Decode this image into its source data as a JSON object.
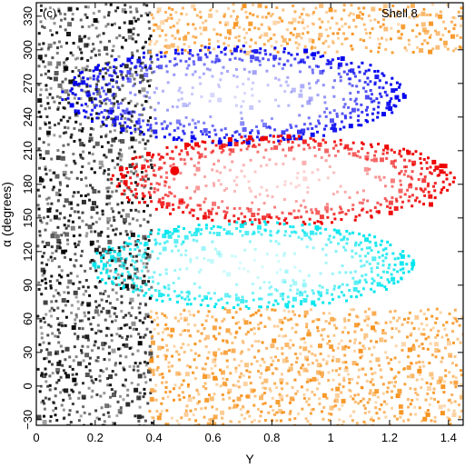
{
  "chart_data": {
    "type": "scatter",
    "panel_label": "(c)",
    "annotation": "Shell 8",
    "xlabel": "Y",
    "ylabel": "α (degrees)",
    "xlim": [
      0,
      1.45
    ],
    "ylim": [
      -35,
      342
    ],
    "xticks": [
      0,
      0.2,
      0.4,
      0.6,
      0.8,
      1,
      1.2,
      1.4
    ],
    "xtick_labels": [
      "0",
      "0.2",
      "0.4",
      "0.6",
      "0.8",
      "1",
      "1.2",
      "1.4"
    ],
    "yticks": [
      -30,
      0,
      30,
      60,
      90,
      120,
      150,
      180,
      210,
      240,
      270,
      300,
      330
    ],
    "ytick_labels": [
      "−30",
      "0",
      "30",
      "60",
      "90",
      "120",
      "150",
      "180",
      "210",
      "240",
      "270",
      "300",
      "330"
    ],
    "grid": false,
    "colors": {
      "black": "#000000",
      "orange": "#f7931e",
      "blue": "#0000ee",
      "red": "#ee0000",
      "cyan": "#00e5ee"
    },
    "regions": [
      {
        "color": "black",
        "x_range": [
          0.0,
          0.38
        ],
        "y_range": [
          -35,
          342
        ]
      },
      {
        "color": "orange",
        "x_range": [
          0.38,
          1.45
        ],
        "y_range": [
          -35,
          70
        ]
      },
      {
        "color": "orange",
        "x_range": [
          0.38,
          1.45
        ],
        "y_range": [
          300,
          342
        ]
      },
      {
        "color": "blue",
        "x_range": [
          0.08,
          1.25
        ],
        "y_range": [
          218,
          305
        ]
      },
      {
        "color": "red",
        "x_range": [
          0.25,
          1.42
        ],
        "y_range": [
          145,
          225
        ]
      },
      {
        "color": "cyan",
        "x_range": [
          0.18,
          1.28
        ],
        "y_range": [
          70,
          148
        ]
      }
    ],
    "highlight_points": [
      {
        "x": 0.47,
        "y": 192,
        "color": "red"
      }
    ]
  }
}
